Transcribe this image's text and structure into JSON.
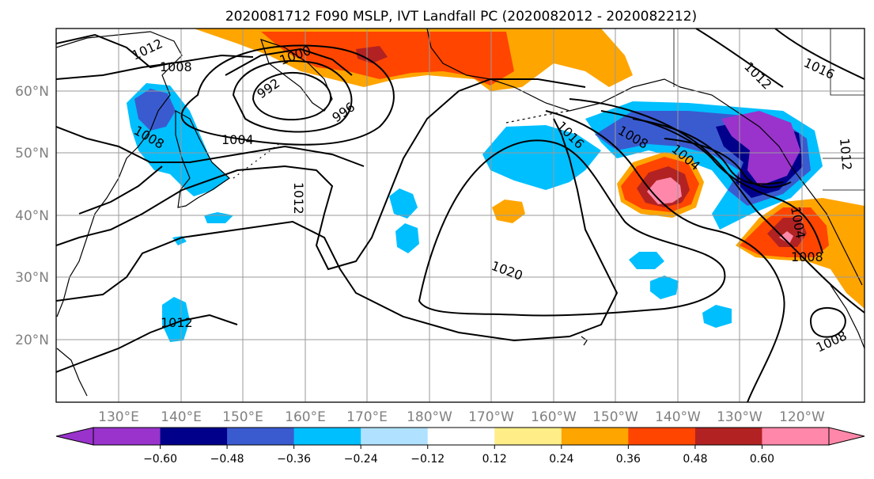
{
  "title": "2020081712 F090 MSLP, IVT Landfall PC (2020082012 - 2020082212)",
  "map": {
    "lat_ticks": [
      "60°N",
      "50°N",
      "40°N",
      "30°N",
      "20°N"
    ],
    "lon_ticks": [
      "130°E",
      "140°E",
      "150°E",
      "160°E",
      "170°E",
      "180°W",
      "170°W",
      "160°W",
      "150°W",
      "140°W",
      "130°W",
      "120°W"
    ],
    "gridlines": true,
    "contour_labels": [
      "1012",
      "1008",
      "1000",
      "992",
      "996",
      "1004",
      "1008",
      "1004",
      "1012",
      "1016",
      "1008",
      "1004",
      "1012",
      "1016",
      "1020",
      "1008",
      "1008",
      "1012",
      "1012"
    ]
  },
  "colorbar": {
    "ticks": [
      "−0.60",
      "−0.48",
      "−0.36",
      "−0.24",
      "−0.12",
      "0.12",
      "0.24",
      "0.36",
      "0.48",
      "0.60"
    ],
    "colors": [
      "#9933cc",
      "#00008b",
      "#3a5bd0",
      "#00bfff",
      "#b0e2ff",
      "#ffffff",
      "#ffee88",
      "#ffa500",
      "#ff4500",
      "#b22222",
      "#ff88aa"
    ]
  }
}
